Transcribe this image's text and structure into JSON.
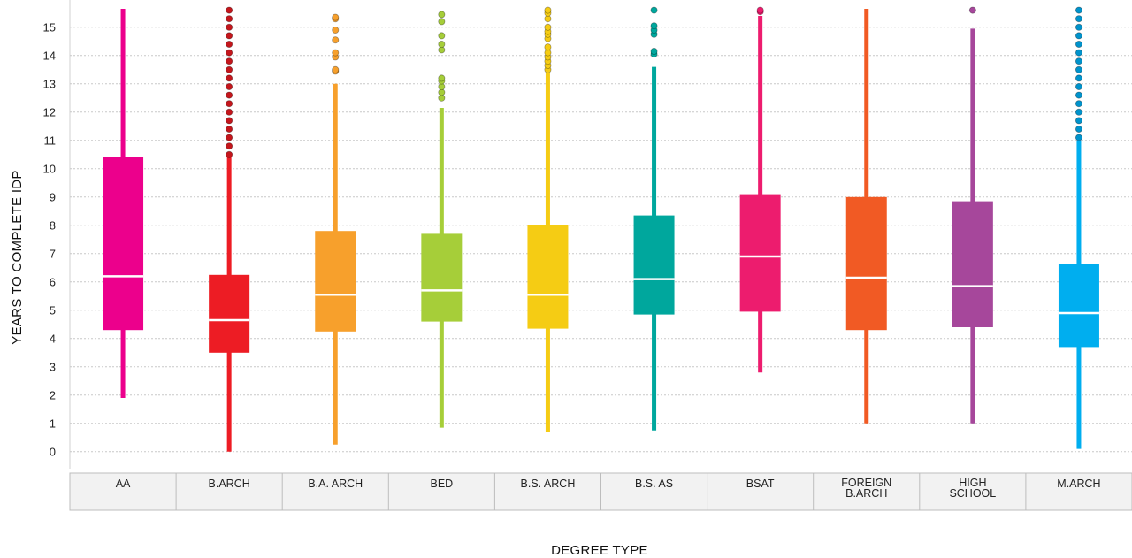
{
  "chart_data": {
    "type": "boxplot",
    "xlabel": "DEGREE TYPE",
    "ylabel": "YEARS TO COMPLETE IDP",
    "ylim": [
      -0.6,
      15.65
    ],
    "yticks": [
      0,
      1,
      2,
      3,
      4,
      5,
      6,
      7,
      8,
      9,
      10,
      11,
      12,
      13,
      14,
      15
    ],
    "grid": true,
    "categories": [
      {
        "label": [
          "AA"
        ],
        "color": "#EC008C",
        "min": 1.9,
        "q1": 4.3,
        "median": 6.2,
        "q3": 10.4,
        "max": 15.65,
        "outliers": []
      },
      {
        "label": [
          "B.ARCH"
        ],
        "color": "#ED1C24",
        "min": 0.0,
        "q1": 3.5,
        "median": 4.65,
        "q3": 6.25,
        "max": 10.4,
        "outliers": [
          10.5,
          10.8,
          11.1,
          11.4,
          11.7,
          12.0,
          12.3,
          12.6,
          12.9,
          13.2,
          13.5,
          13.8,
          14.1,
          14.4,
          14.7,
          15.0,
          15.3,
          15.6
        ],
        "outlier_color": "#C4161C"
      },
      {
        "label": [
          "B.A. ARCH"
        ],
        "color": "#F7A02C",
        "min": 0.25,
        "q1": 4.25,
        "median": 5.55,
        "q3": 7.8,
        "max": 13.0,
        "outliers": [
          13.45,
          13.5,
          13.95,
          14.1,
          14.55,
          14.9,
          15.3,
          15.35
        ]
      },
      {
        "label": [
          "BED"
        ],
        "color": "#A6CE39",
        "min": 0.85,
        "q1": 4.6,
        "median": 5.7,
        "q3": 7.7,
        "max": 12.15,
        "outliers": [
          12.5,
          12.7,
          12.9,
          13.1,
          13.2,
          14.2,
          14.4,
          14.7,
          15.2,
          15.45
        ]
      },
      {
        "label": [
          "B.S. ARCH"
        ],
        "color": "#F5CC14",
        "min": 0.7,
        "q1": 4.35,
        "median": 5.55,
        "q3": 8.0,
        "max": 13.4,
        "outliers": [
          13.5,
          13.65,
          13.8,
          13.95,
          14.1,
          14.3,
          14.6,
          14.75,
          14.85,
          15.0,
          15.3,
          15.5,
          15.6
        ]
      },
      {
        "label": [
          "B.S. AS"
        ],
        "color": "#00A79D",
        "min": 0.75,
        "q1": 4.85,
        "median": 6.1,
        "q3": 8.35,
        "max": 13.6,
        "outliers": [
          14.05,
          14.15,
          14.75,
          14.9,
          15.05,
          15.6
        ]
      },
      {
        "label": [
          "BSAT"
        ],
        "color": "#ED1C6E",
        "min": 2.8,
        "q1": 4.95,
        "median": 6.9,
        "q3": 9.1,
        "max": 15.4,
        "outliers": [
          15.55,
          15.6
        ]
      },
      {
        "label": [
          "FOREIGN",
          "B.ARCH"
        ],
        "color": "#F15A24",
        "min": 1.0,
        "q1": 4.3,
        "median": 6.15,
        "q3": 9.0,
        "max": 15.65,
        "outliers": []
      },
      {
        "label": [
          "HIGH",
          "SCHOOL"
        ],
        "color": "#A6479B",
        "min": 1.0,
        "q1": 4.4,
        "median": 5.85,
        "q3": 8.85,
        "max": 14.95,
        "outliers": [
          15.6
        ]
      },
      {
        "label": [
          "M.ARCH"
        ],
        "color": "#00AEEF",
        "min": 0.1,
        "q1": 3.7,
        "median": 4.9,
        "q3": 6.65,
        "max": 11.0,
        "outliers": [
          11.1,
          11.4,
          11.7,
          12.0,
          12.3,
          12.6,
          12.9,
          13.2,
          13.5,
          13.8,
          14.1,
          14.4,
          14.7,
          15.0,
          15.3,
          15.6
        ],
        "outlier_color": "#0093CC"
      }
    ]
  }
}
